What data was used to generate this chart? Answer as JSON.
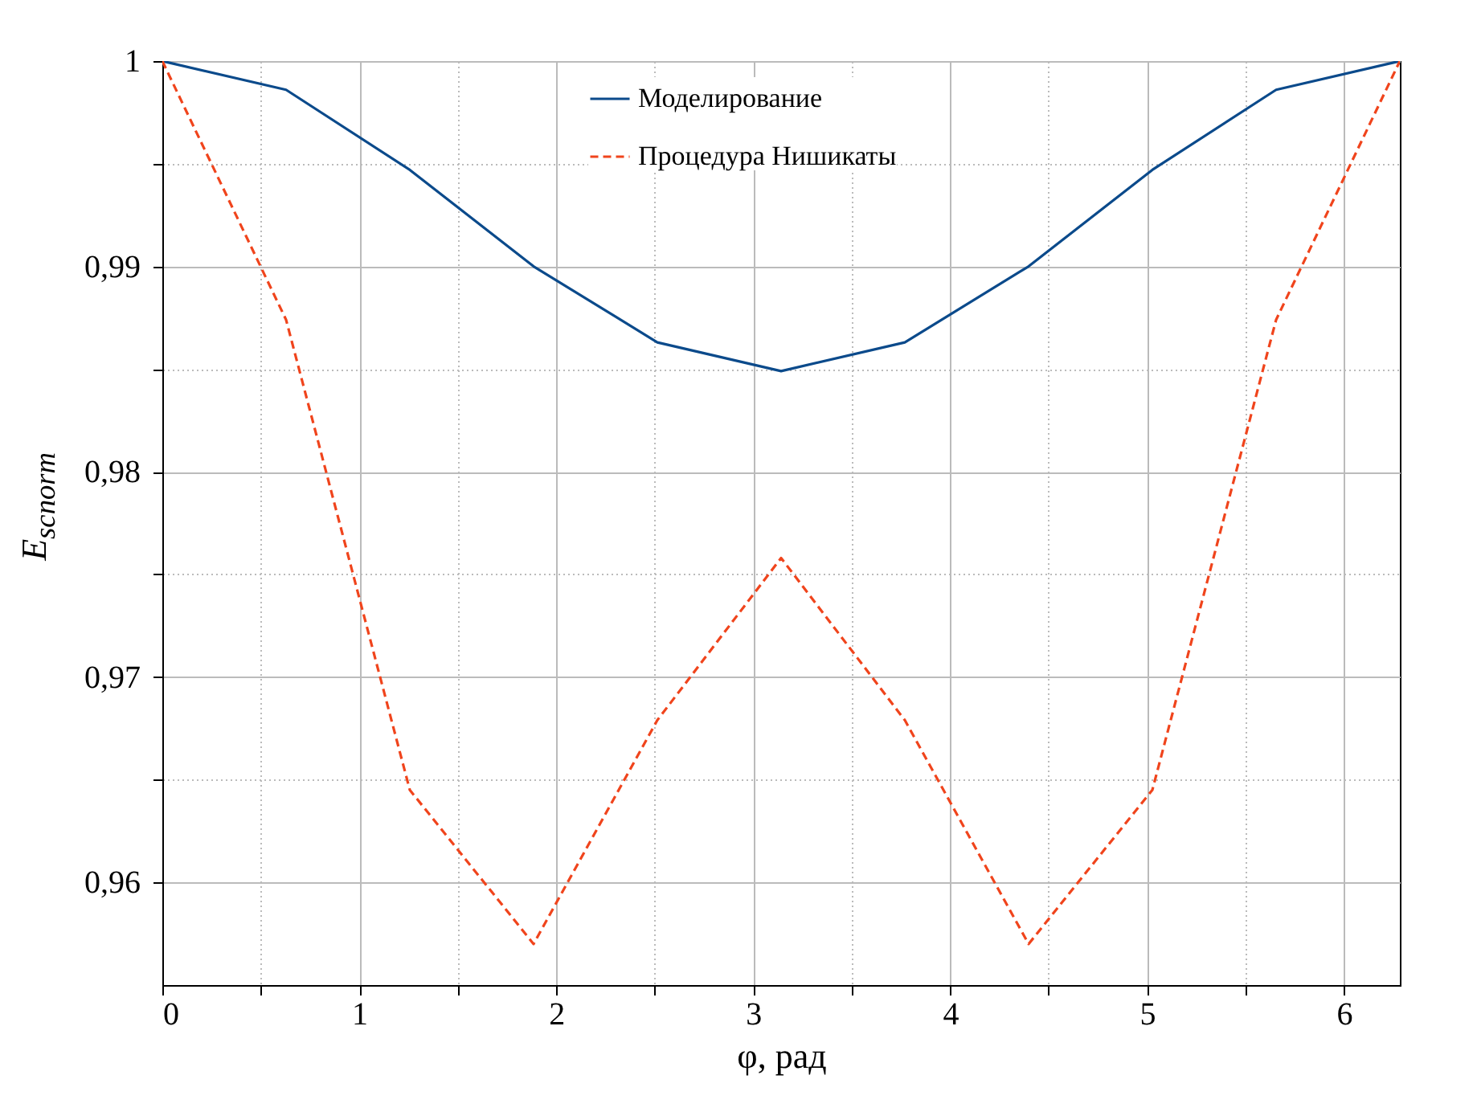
{
  "chart_data": {
    "type": "line",
    "xlabel": "φ, рад",
    "ylabel": "E$_{scnorm}$",
    "x": [
      0,
      0.6283,
      1.2566,
      1.885,
      2.5133,
      3.1416,
      3.7699,
      4.3982,
      5.0265,
      5.6549,
      6.2832
    ],
    "series": [
      {
        "name": "Моделирование",
        "color": "#0b4a8b",
        "line_style": "solid",
        "values": [
          1.0,
          0.9986,
          0.9947,
          0.99,
          0.9863,
          0.9849,
          0.9863,
          0.99,
          0.9947,
          0.9986,
          1.0
        ]
      },
      {
        "name": "Процедура Нишикаты",
        "color": "#f0441c",
        "line_style": "dashed",
        "values": [
          1.0,
          0.9874,
          0.9645,
          0.957,
          0.9679,
          0.9758,
          0.9679,
          0.957,
          0.9645,
          0.9874,
          1.0
        ]
      }
    ],
    "xlim": [
      0,
      6.2832
    ],
    "ylim": [
      0.955,
      1.0
    ],
    "xticks": [
      0,
      {
        "value": 0.5,
        "label": null
      },
      1,
      {
        "value": 1.5,
        "label": null
      },
      2,
      {
        "value": 2.5,
        "label": null
      },
      3,
      {
        "value": 3.5,
        "label": null
      },
      4,
      {
        "value": 4.5,
        "label": null
      },
      5,
      {
        "value": 5.5,
        "label": null
      },
      6
    ],
    "yticks": [
      {
        "value": 0.96,
        "label": "0,96"
      },
      {
        "value": 0.965,
        "label": null
      },
      {
        "value": 0.97,
        "label": "0,97"
      },
      {
        "value": 0.975,
        "label": null
      },
      {
        "value": 0.98,
        "label": "0,98"
      },
      {
        "value": 0.985,
        "label": null
      },
      {
        "value": 0.99,
        "label": "0,99"
      },
      {
        "value": 0.995,
        "label": null
      },
      {
        "value": 1,
        "label": "1"
      }
    ],
    "grid": true,
    "legend": "top",
    "marker": "none"
  }
}
